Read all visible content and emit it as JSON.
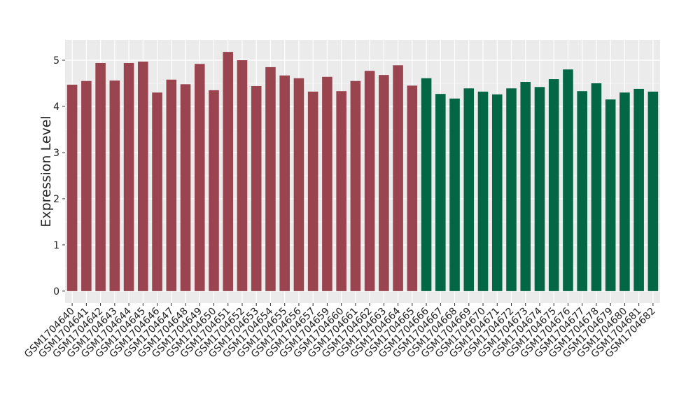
{
  "chart_data": {
    "type": "bar",
    "y_label": "Expression Level",
    "categories": [
      "GSM1704640",
      "GSM1704641",
      "GSM1704642",
      "GSM1704643",
      "GSM1704644",
      "GSM1704645",
      "GSM1704646",
      "GSM1704647",
      "GSM1704648",
      "GSM1704649",
      "GSM1704650",
      "GSM1704651",
      "GSM1704652",
      "GSM1704653",
      "GSM1704654",
      "GSM1704655",
      "GSM1704656",
      "GSM1704657",
      "GSM1704659",
      "GSM1704660",
      "GSM1704661",
      "GSM1704662",
      "GSM1704663",
      "GSM1704664",
      "GSM1704665",
      "GSM1704666",
      "GSM1704667",
      "GSM1704668",
      "GSM1704669",
      "GSM1704670",
      "GSM1704671",
      "GSM1704672",
      "GSM1704673",
      "GSM1704674",
      "GSM1704675",
      "GSM1704676",
      "GSM1704677",
      "GSM1704678",
      "GSM1704679",
      "GSM1704680",
      "GSM1704681",
      "GSM1704682"
    ],
    "values": [
      4.47,
      4.55,
      4.94,
      4.56,
      4.94,
      4.97,
      4.3,
      4.58,
      4.48,
      4.92,
      4.35,
      5.18,
      5.0,
      4.44,
      4.85,
      4.67,
      4.61,
      4.32,
      4.64,
      4.33,
      4.55,
      4.77,
      4.68,
      4.89,
      4.45,
      4.61,
      4.27,
      4.17,
      4.39,
      4.32,
      4.26,
      4.39,
      4.53,
      4.42,
      4.59,
      4.8,
      4.33,
      4.5,
      4.15,
      4.3,
      4.38,
      4.32
    ],
    "colors": [
      "#9a4450",
      "#9a4450",
      "#9a4450",
      "#9a4450",
      "#9a4450",
      "#9a4450",
      "#9a4450",
      "#9a4450",
      "#9a4450",
      "#9a4450",
      "#9a4450",
      "#9a4450",
      "#9a4450",
      "#9a4450",
      "#9a4450",
      "#9a4450",
      "#9a4450",
      "#9a4450",
      "#9a4450",
      "#9a4450",
      "#9a4450",
      "#9a4450",
      "#9a4450",
      "#9a4450",
      "#9a4450",
      "#036645",
      "#036645",
      "#036645",
      "#036645",
      "#036645",
      "#036645",
      "#036645",
      "#036645",
      "#036645",
      "#036645",
      "#036645",
      "#036645",
      "#036645",
      "#036645",
      "#036645",
      "#036645",
      "#036645"
    ],
    "ylim": [
      -0.26,
      5.44
    ],
    "yticks": [
      0,
      1,
      2,
      3,
      4,
      5
    ],
    "grid": true
  }
}
